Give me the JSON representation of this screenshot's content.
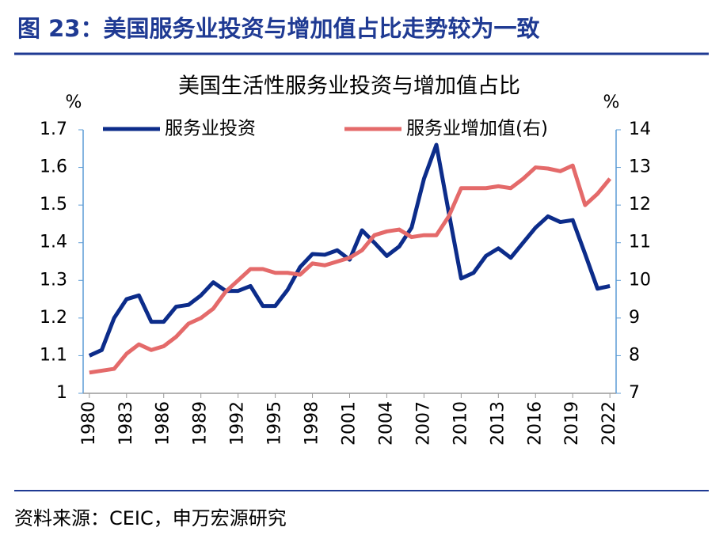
{
  "header": {
    "title": "图 23：美国服务业投资与增加值占比走势较为一致"
  },
  "chart_data": {
    "type": "line",
    "title": "美国生活性服务业投资与增加值占比",
    "y_label": "%",
    "y2_label": "%",
    "x": [
      1980,
      1981,
      1982,
      1983,
      1984,
      1985,
      1986,
      1987,
      1988,
      1989,
      1990,
      1991,
      1992,
      1993,
      1994,
      1995,
      1996,
      1997,
      1998,
      1999,
      2000,
      2001,
      2002,
      2003,
      2004,
      2005,
      2006,
      2007,
      2008,
      2009,
      2010,
      2011,
      2012,
      2013,
      2014,
      2015,
      2016,
      2017,
      2018,
      2019,
      2020,
      2021,
      2022
    ],
    "xlim": [
      1979.5,
      2022.5
    ],
    "xticks": [
      1980,
      1983,
      1986,
      1989,
      1992,
      1995,
      1998,
      2001,
      2004,
      2007,
      2010,
      2013,
      2016,
      2019,
      2022
    ],
    "ylim": [
      1,
      1.7
    ],
    "yticks": [
      1,
      1.1,
      1.2,
      1.3,
      1.4,
      1.5,
      1.6,
      1.7
    ],
    "y2lim": [
      7,
      14
    ],
    "y2ticks": [
      7,
      8,
      9,
      10,
      11,
      12,
      13,
      14
    ],
    "legend": "top",
    "series": [
      {
        "name": "服务业投资",
        "color": "#0c2c8a",
        "values": [
          1.1,
          1.115,
          1.2,
          1.25,
          1.26,
          1.19,
          1.19,
          1.23,
          1.235,
          1.26,
          1.295,
          1.272,
          1.272,
          1.285,
          1.232,
          1.232,
          1.275,
          1.335,
          1.37,
          1.368,
          1.38,
          1.355,
          1.433,
          1.4,
          1.365,
          1.39,
          1.44,
          1.57,
          1.66,
          1.48,
          1.305,
          1.32,
          1.365,
          1.385,
          1.36,
          1.4,
          1.44,
          1.47,
          1.455,
          1.46,
          1.37,
          1.278,
          1.285
        ]
      },
      {
        "name": "服务业增加值(右)",
        "color": "#e46a6a",
        "axis": "y2",
        "values": [
          7.55,
          7.6,
          7.65,
          8.05,
          8.3,
          8.15,
          8.25,
          8.5,
          8.85,
          9.0,
          9.25,
          9.7,
          10.0,
          10.3,
          10.3,
          10.2,
          10.2,
          10.15,
          10.45,
          10.4,
          10.5,
          10.6,
          10.8,
          11.2,
          11.3,
          11.35,
          11.15,
          11.2,
          11.2,
          11.7,
          12.45,
          12.45,
          12.45,
          12.5,
          12.45,
          12.7,
          13.0,
          12.97,
          12.9,
          13.05,
          12.0,
          12.3,
          12.7
        ]
      }
    ]
  },
  "footer": {
    "source": "资料来源：CEIC，申万宏源研究"
  }
}
